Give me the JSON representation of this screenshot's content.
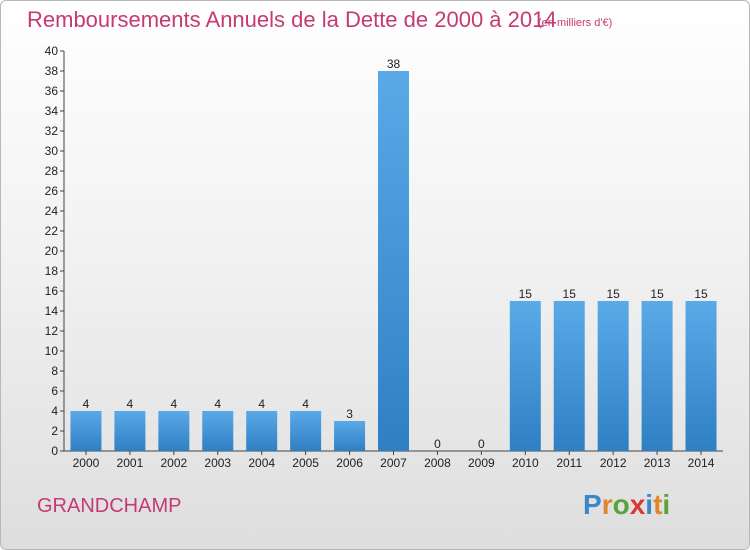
{
  "chart_data": {
    "type": "bar",
    "title": "Remboursements Annuels de la Dette de 2000 à 2014",
    "subtitle": "(en milliers d'€)",
    "categories": [
      "2000",
      "2001",
      "2002",
      "2003",
      "2004",
      "2005",
      "2006",
      "2007",
      "2008",
      "2009",
      "2010",
      "2011",
      "2012",
      "2013",
      "2014"
    ],
    "values": [
      4,
      4,
      4,
      4,
      4,
      4,
      3,
      38,
      0,
      0,
      15,
      15,
      15,
      15,
      15
    ],
    "data_labels": [
      "4",
      "4",
      "4",
      "4",
      "4",
      "4",
      "3",
      "38",
      "0",
      "0",
      "15",
      "15",
      "15",
      "15",
      "15"
    ],
    "ylim": [
      0,
      40
    ],
    "yticks": [
      "0",
      "2",
      "4",
      "6",
      "8",
      "10",
      "12",
      "14",
      "16",
      "18",
      "20",
      "22",
      "24",
      "26",
      "28",
      "30",
      "32",
      "34",
      "36",
      "38",
      "40"
    ],
    "xlabel": "",
    "ylabel": "",
    "grid": false,
    "bar_color": "#4a9be0"
  },
  "footer": {
    "commune": "GRANDCHAMP",
    "logo_text": "Proxiti"
  }
}
